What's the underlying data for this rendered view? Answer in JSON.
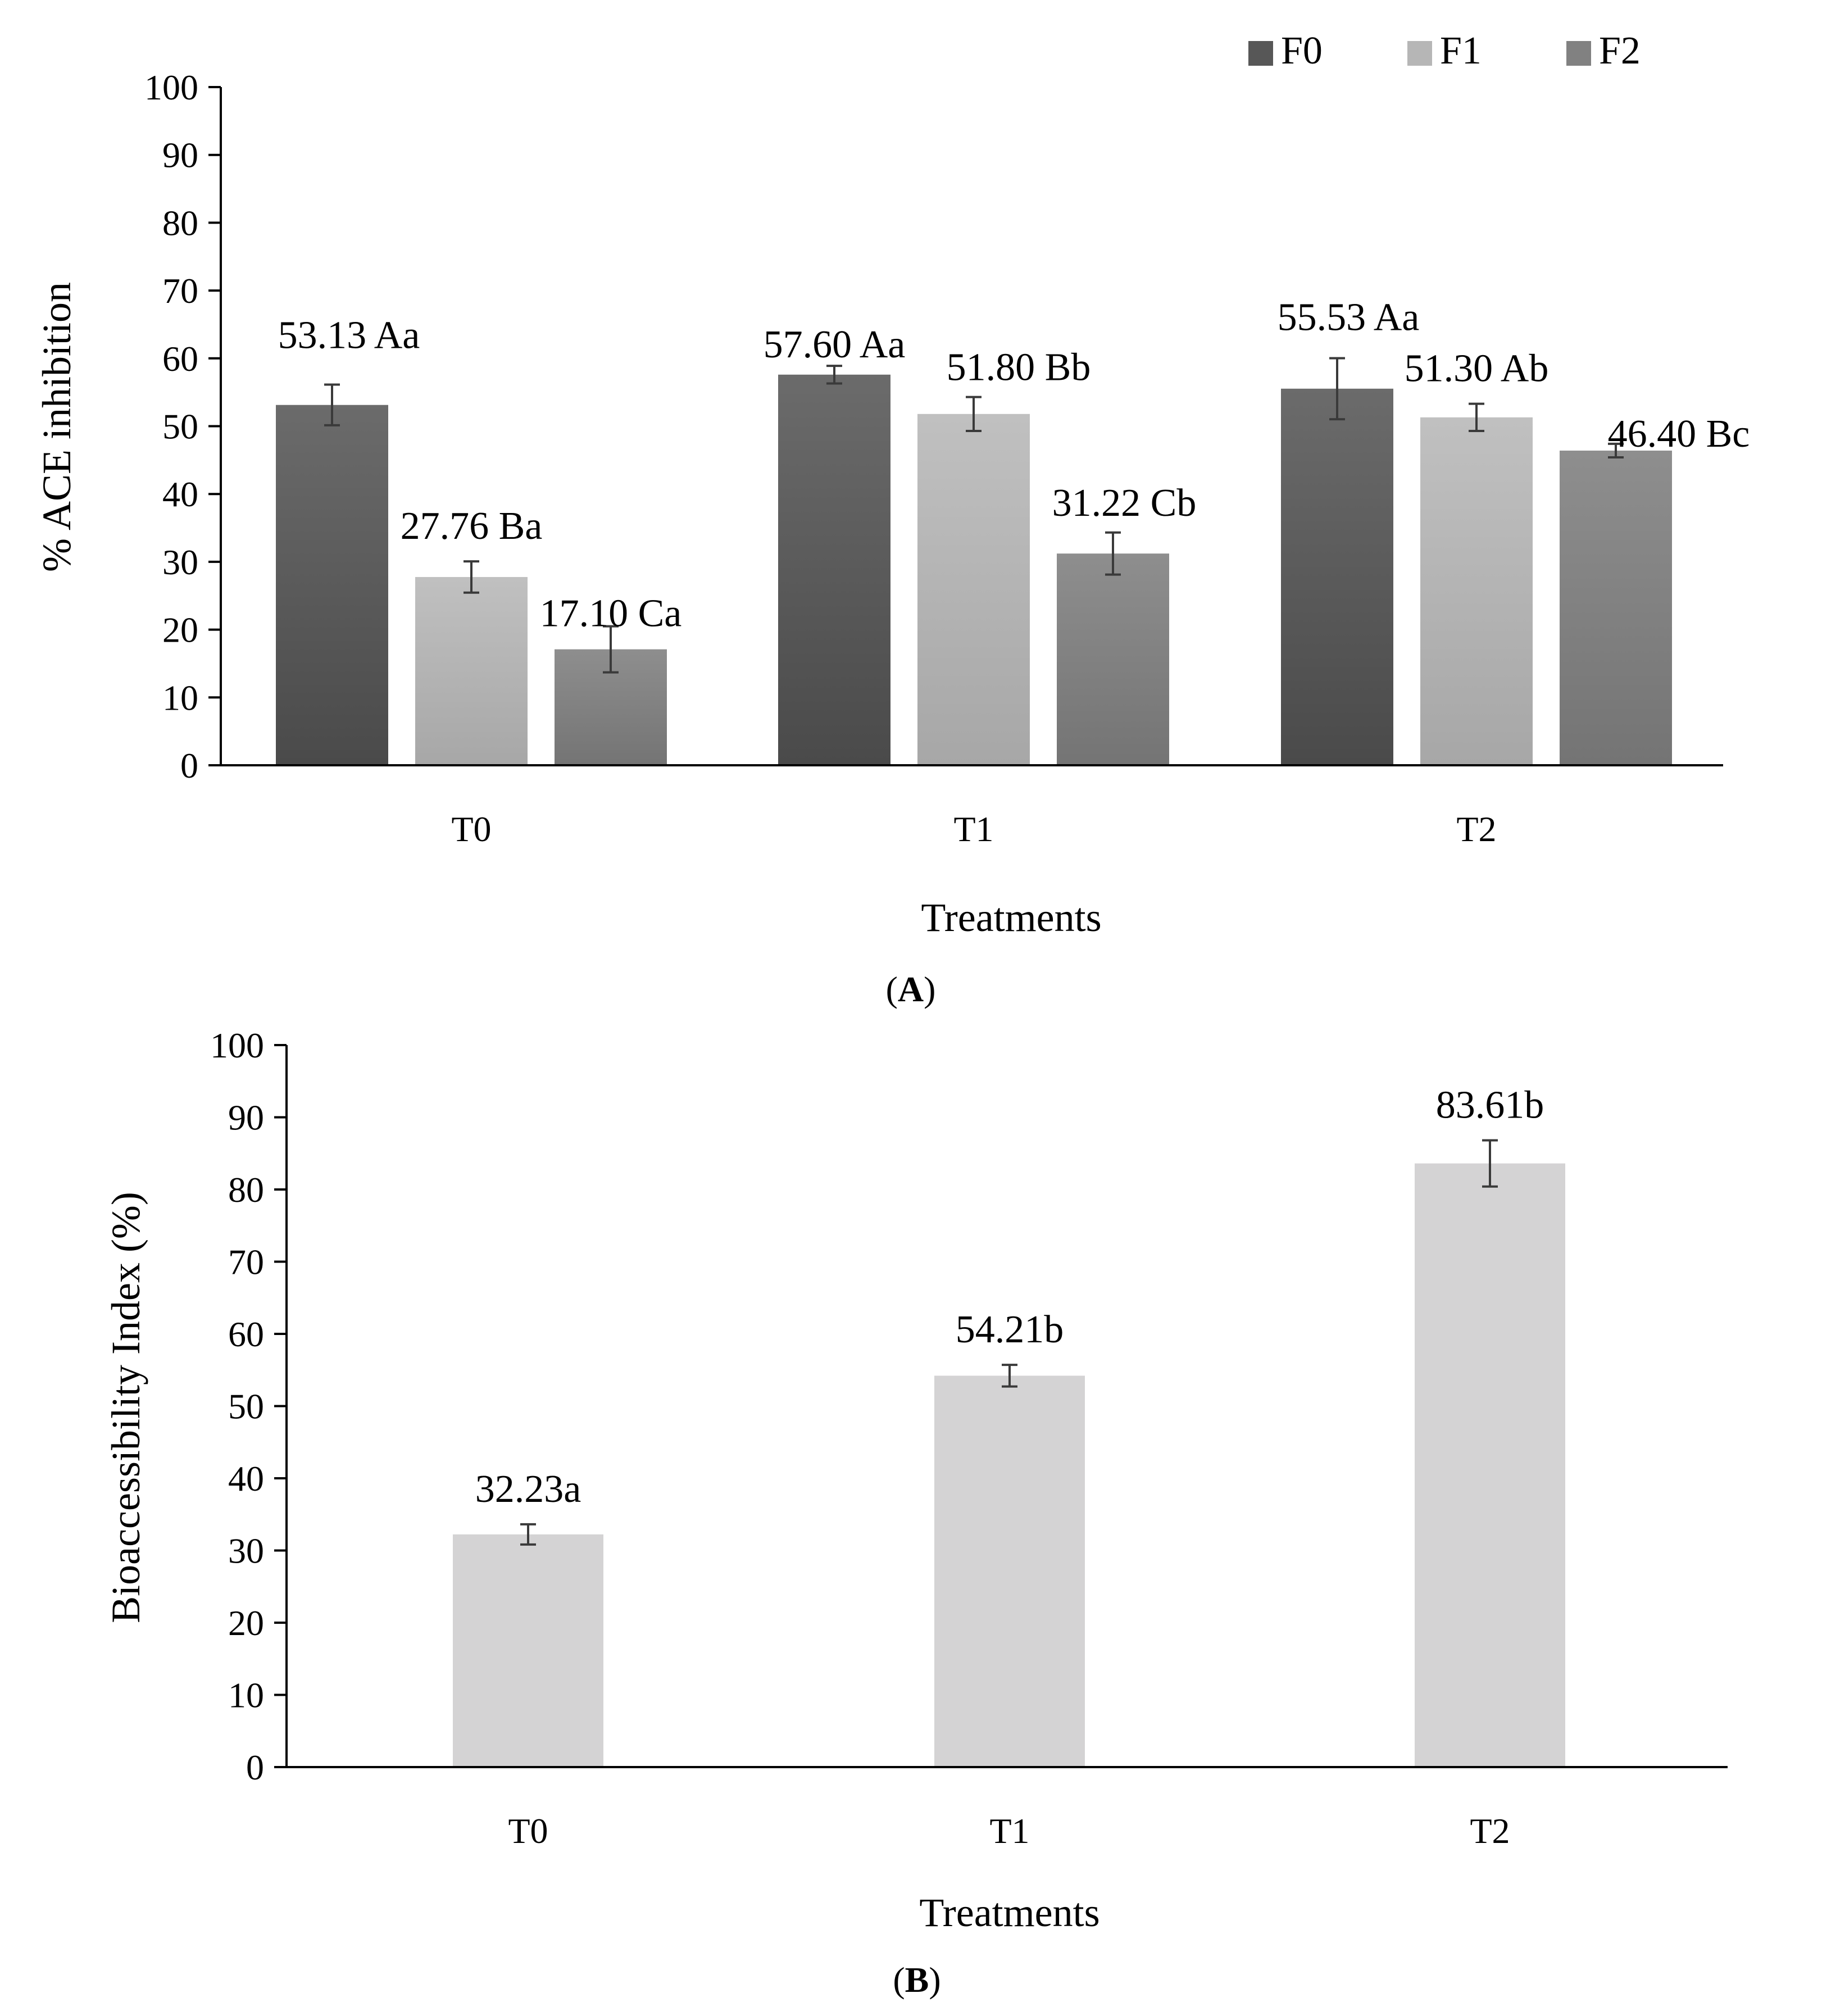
{
  "chart_data": [
    {
      "type": "bar",
      "panel_label": {
        "open": "(",
        "letter": "A",
        "close": ")"
      },
      "categories": [
        "T0",
        "T1",
        "T2"
      ],
      "series": [
        {
          "name": "F0",
          "color": "#575757",
          "values": [
            53.13,
            57.6,
            55.53
          ],
          "errors": [
            3.0,
            1.3,
            4.5
          ],
          "labels": [
            "53.13 Aa",
            "57.60 Aa",
            "55.53 Aa"
          ]
        },
        {
          "name": "F1",
          "color": "#b6b6b6",
          "values": [
            27.76,
            51.8,
            51.3
          ],
          "errors": [
            2.3,
            2.5,
            2.0
          ],
          "labels": [
            "27.76 Ba",
            "51.80 Bb",
            "51.30 Ab"
          ]
        },
        {
          "name": "F2",
          "color": "#818181",
          "values": [
            17.1,
            31.22,
            46.4
          ],
          "errors": [
            3.4,
            3.1,
            1.0
          ],
          "labels": [
            "17.10 Ca",
            "31.22 Cb",
            "46.40 Bc"
          ]
        }
      ],
      "xlabel": "Treatments",
      "ylabel": "% ACE inhibition",
      "ylim": [
        0,
        100
      ],
      "yticks": [
        0,
        10,
        20,
        30,
        40,
        50,
        60,
        70,
        80,
        90,
        100
      ],
      "legend_position": "top-right",
      "grid": false
    },
    {
      "type": "bar",
      "panel_label": {
        "open": "(",
        "letter": "B",
        "close": ")"
      },
      "categories": [
        "T0",
        "T1",
        "T2"
      ],
      "series": [
        {
          "color": "#d4d3d4",
          "values": [
            32.23,
            54.21,
            83.61
          ],
          "errors": [
            1.4,
            1.5,
            3.2
          ],
          "labels": [
            "32.23a",
            "54.21b",
            "83.61b"
          ]
        }
      ],
      "xlabel": "Treatments",
      "ylabel": "Bioaccessibility Index (%)",
      "ylim": [
        0,
        100
      ],
      "yticks": [
        0,
        10,
        20,
        30,
        40,
        50,
        60,
        70,
        80,
        90,
        100
      ],
      "grid": false
    }
  ]
}
